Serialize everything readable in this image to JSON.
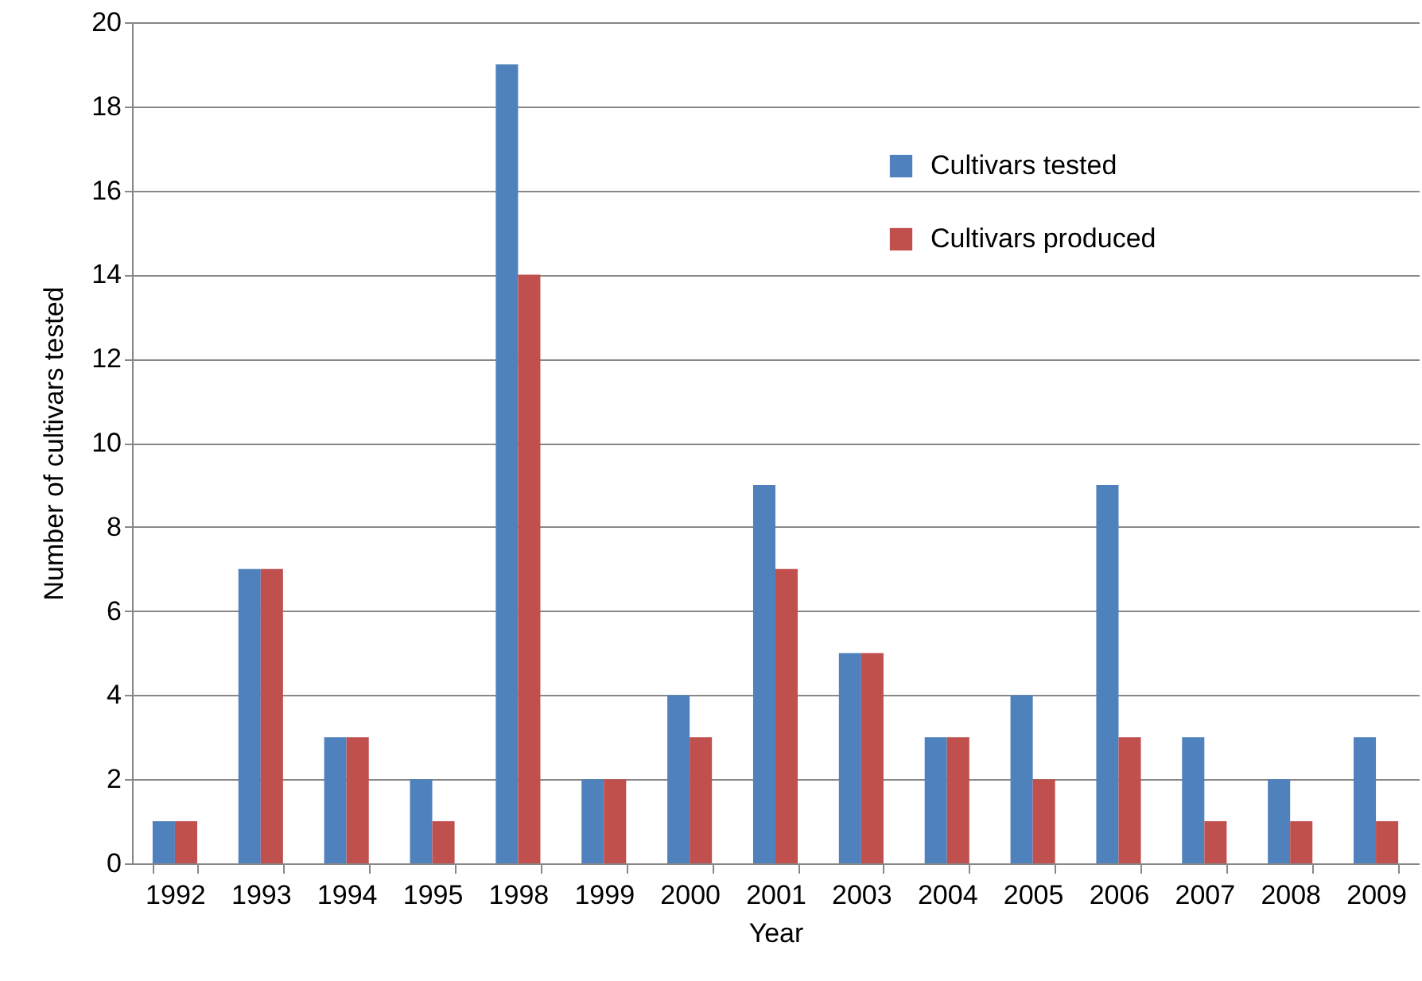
{
  "chart_data": {
    "type": "bar",
    "xlabel": "Year",
    "ylabel": "Number of cultivars tested",
    "categories": [
      "1992",
      "1993",
      "1994",
      "1995",
      "1998",
      "1999",
      "2000",
      "2001",
      "2003",
      "2004",
      "2005",
      "2006",
      "2007",
      "2008",
      "2009"
    ],
    "series": [
      {
        "name": "Cultivars tested",
        "color": "#4f81bd",
        "values": [
          1,
          7,
          3,
          2,
          19,
          2,
          4,
          9,
          5,
          3,
          4,
          9,
          3,
          2,
          3
        ]
      },
      {
        "name": "Cultivars produced",
        "color": "#c0504d",
        "values": [
          1,
          7,
          3,
          1,
          14,
          2,
          3,
          7,
          5,
          3,
          2,
          3,
          1,
          1,
          1
        ]
      }
    ],
    "ylim": [
      0,
      20
    ],
    "yticks": [
      0,
      2,
      4,
      6,
      8,
      10,
      12,
      14,
      16,
      18,
      20
    ],
    "grid": "y",
    "legend": "top right"
  }
}
